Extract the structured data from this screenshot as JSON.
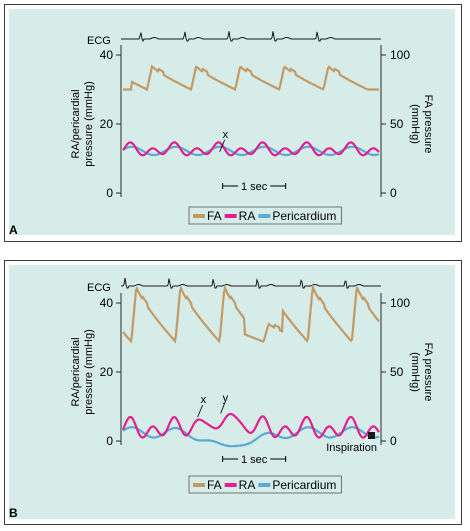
{
  "colors": {
    "plot_bg": "#d5ece9",
    "fa": "#c49a64",
    "ra": "#e2218f",
    "pericardium": "#5aaad4",
    "ecg": "#1a1a1a",
    "axis": "#2a2a2a"
  },
  "panels": [
    {
      "letter": "A",
      "ecg_label": "ECG",
      "left_axis_label": "RA/pericardial\npressure (mmHg)",
      "right_axis_label": "FA pressure\n(mmHg)",
      "left_ticks": [
        "40",
        "20",
        "0"
      ],
      "right_ticks": [
        "100",
        "50",
        "0"
      ],
      "annotations": {
        "x": "x"
      },
      "scale_bar": "1 sec",
      "legend": [
        "FA",
        "RA",
        "Pericardium"
      ]
    },
    {
      "letter": "B",
      "ecg_label": "ECG",
      "left_axis_label": "RA/pericardial\npressure (mmHg)",
      "right_axis_label": "FA pressure\n(mmHg)",
      "left_ticks": [
        "40",
        "20",
        "0"
      ],
      "right_ticks": [
        "100",
        "50",
        "0"
      ],
      "annotations": {
        "x": "x",
        "y": "y",
        "inspiration": "Inspiration"
      },
      "scale_bar": "1 sec",
      "legend": [
        "FA",
        "RA",
        "Pericardium"
      ]
    }
  ],
  "chart_data": [
    {
      "type": "line",
      "left_axis": {
        "label": "RA/pericardial pressure (mmHg)",
        "ylim": [
          0,
          40
        ]
      },
      "right_axis": {
        "label": "FA pressure (mmHg)",
        "ylim": [
          0,
          100
        ]
      },
      "series": [
        {
          "name": "FA",
          "axis": "right",
          "beat_times": [
            0.35,
            1.05,
            1.75,
            2.45,
            3.15
          ],
          "systolic": 92,
          "diastolic": 75
        },
        {
          "name": "RA",
          "axis": "left",
          "mean": 12.5,
          "amplitude": 2.2
        },
        {
          "name": "Pericardium",
          "axis": "left",
          "mean": 12.2,
          "amplitude": 1.2
        }
      ],
      "scale_bar": "1 sec"
    },
    {
      "type": "line",
      "left_axis": {
        "label": "RA/pericardial pressure (mmHg)",
        "ylim": [
          0,
          40
        ]
      },
      "right_axis": {
        "label": "FA pressure (mmHg)",
        "ylim": [
          0,
          100
        ]
      },
      "series": [
        {
          "name": "FA",
          "axis": "right",
          "beat_times": [
            0.1,
            0.8,
            1.5,
            2.2,
            2.9,
            3.6
          ],
          "systolic": 112,
          "diastolic": 72,
          "inspiratory_dip": 85
        },
        {
          "name": "RA",
          "axis": "left",
          "mean": 3.5,
          "amplitude": 3.5,
          "inspiratory_peak": 8
        },
        {
          "name": "Pericardium",
          "axis": "left",
          "mean": 2.5,
          "amplitude": 1.5,
          "inspiratory_trough": -1.5
        }
      ],
      "annotation": "Inspiration",
      "scale_bar": "1 sec"
    }
  ]
}
